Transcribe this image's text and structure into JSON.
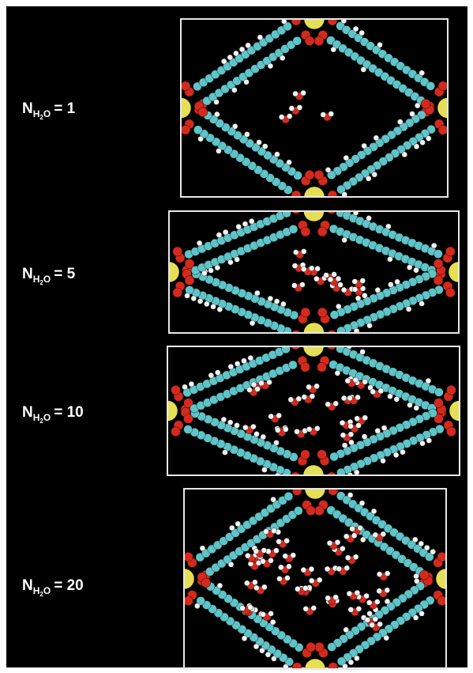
{
  "panels": [
    {
      "label": {
        "symbol": "N",
        "sub1": "H",
        "sub2": "2",
        "sub3": "O",
        "rest": "= 1"
      }
    },
    {
      "label": {
        "symbol": "N",
        "sub1": "H",
        "sub2": "2",
        "sub3": "O",
        "rest": "= 5"
      }
    },
    {
      "label": {
        "symbol": "N",
        "sub1": "H",
        "sub2": "2",
        "sub3": "O",
        "rest": "= 10"
      }
    },
    {
      "label": {
        "symbol": "N",
        "sub1": "H",
        "sub2": "2",
        "sub3": "O",
        "rest": "= 20"
      }
    }
  ]
}
